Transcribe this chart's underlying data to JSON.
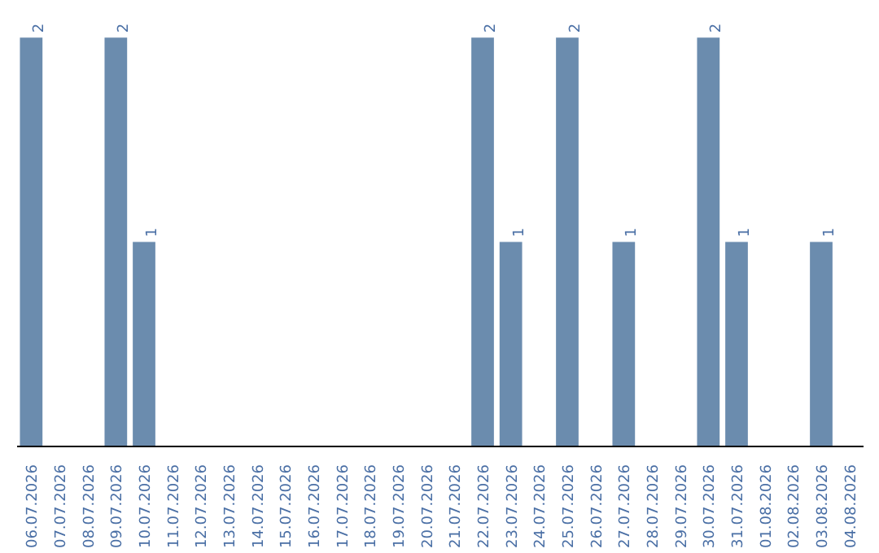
{
  "chart_data": {
    "type": "bar",
    "categories": [
      "06.07.2026",
      "07.07.2026",
      "08.07.2026",
      "09.07.2026",
      "10.07.2026",
      "11.07.2026",
      "12.07.2026",
      "13.07.2026",
      "14.07.2026",
      "15.07.2026",
      "16.07.2026",
      "17.07.2026",
      "18.07.2026",
      "19.07.2026",
      "20.07.2026",
      "21.07.2026",
      "22.07.2026",
      "23.07.2026",
      "24.07.2026",
      "25.07.2026",
      "26.07.2026",
      "27.07.2026",
      "28.07.2026",
      "29.07.2026",
      "30.07.2026",
      "31.07.2026",
      "01.08.2026",
      "02.08.2026",
      "03.08.2026",
      "04.08.2026"
    ],
    "values": [
      2,
      0,
      0,
      2,
      1,
      0,
      0,
      0,
      0,
      0,
      0,
      0,
      0,
      0,
      0,
      0,
      2,
      1,
      0,
      2,
      0,
      1,
      0,
      0,
      2,
      1,
      0,
      0,
      1,
      0
    ],
    "value_labels": [
      "2",
      null,
      null,
      "2",
      "1",
      null,
      null,
      null,
      null,
      null,
      null,
      null,
      null,
      null,
      null,
      null,
      "2",
      "1",
      null,
      "2",
      null,
      "1",
      null,
      null,
      "2",
      "1",
      null,
      null,
      "1",
      null
    ],
    "color": "#6b8cae",
    "grid": false
  }
}
